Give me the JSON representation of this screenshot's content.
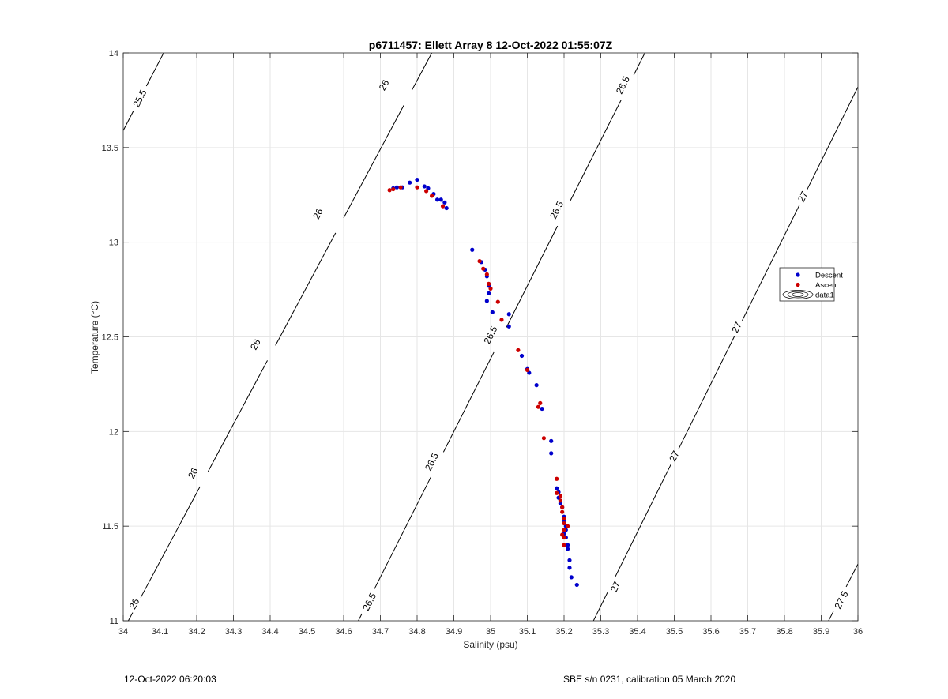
{
  "chart_data": {
    "type": "scatter",
    "title": "p6711457: Ellett Array 8 12-Oct-2022 01:55:07Z",
    "xlabel": "Salinity (psu)",
    "ylabel": "Temperature (°C)",
    "xlim": [
      34,
      36
    ],
    "ylim": [
      11,
      14
    ],
    "xticks": [
      "34",
      "34.1",
      "34.2",
      "34.3",
      "34.4",
      "34.5",
      "34.6",
      "34.7",
      "34.8",
      "34.9",
      "35",
      "35.1",
      "35.2",
      "35.3",
      "35.4",
      "35.5",
      "35.6",
      "35.7",
      "35.8",
      "35.9",
      "36"
    ],
    "yticks": [
      "11",
      "11.5",
      "12",
      "12.5",
      "13",
      "13.5",
      "14"
    ],
    "grid": true,
    "legend_position": "right",
    "series": [
      {
        "name": "Descent",
        "color": "#0000cc",
        "marker": "dot",
        "points": [
          [
            34.735,
            13.285
          ],
          [
            34.745,
            13.29
          ],
          [
            34.76,
            13.29
          ],
          [
            34.78,
            13.315
          ],
          [
            34.8,
            13.33
          ],
          [
            34.82,
            13.295
          ],
          [
            34.83,
            13.285
          ],
          [
            34.845,
            13.255
          ],
          [
            34.855,
            13.225
          ],
          [
            34.865,
            13.225
          ],
          [
            34.875,
            13.21
          ],
          [
            34.88,
            13.18
          ],
          [
            34.95,
            12.96
          ],
          [
            34.975,
            12.895
          ],
          [
            34.985,
            12.855
          ],
          [
            34.99,
            12.82
          ],
          [
            34.995,
            12.77
          ],
          [
            34.995,
            12.73
          ],
          [
            34.99,
            12.69
          ],
          [
            35.005,
            12.63
          ],
          [
            35.05,
            12.62
          ],
          [
            35.05,
            12.555
          ],
          [
            35.085,
            12.4
          ],
          [
            35.1,
            12.33
          ],
          [
            35.105,
            12.31
          ],
          [
            35.125,
            12.245
          ],
          [
            35.14,
            12.12
          ],
          [
            35.165,
            11.95
          ],
          [
            35.165,
            11.885
          ],
          [
            35.18,
            11.7
          ],
          [
            35.185,
            11.68
          ],
          [
            35.185,
            11.65
          ],
          [
            35.19,
            11.62
          ],
          [
            35.195,
            11.6
          ],
          [
            35.2,
            11.55
          ],
          [
            35.2,
            11.53
          ],
          [
            35.205,
            11.5
          ],
          [
            35.205,
            11.48
          ],
          [
            35.2,
            11.46
          ],
          [
            35.205,
            11.44
          ],
          [
            35.21,
            11.4
          ],
          [
            35.21,
            11.38
          ],
          [
            35.215,
            11.32
          ],
          [
            35.215,
            11.28
          ],
          [
            35.22,
            11.23
          ],
          [
            35.235,
            11.19
          ]
        ]
      },
      {
        "name": "Ascent",
        "color": "#cc0000",
        "marker": "dot",
        "points": [
          [
            34.725,
            13.275
          ],
          [
            34.735,
            13.28
          ],
          [
            34.755,
            13.29
          ],
          [
            34.8,
            13.29
          ],
          [
            34.825,
            13.27
          ],
          [
            34.84,
            13.245
          ],
          [
            34.87,
            13.19
          ],
          [
            34.97,
            12.9
          ],
          [
            34.98,
            12.86
          ],
          [
            34.99,
            12.83
          ],
          [
            34.995,
            12.78
          ],
          [
            35.0,
            12.755
          ],
          [
            35.02,
            12.685
          ],
          [
            35.03,
            12.59
          ],
          [
            35.075,
            12.43
          ],
          [
            35.1,
            12.325
          ],
          [
            35.13,
            12.13
          ],
          [
            35.135,
            12.15
          ],
          [
            35.145,
            11.965
          ],
          [
            35.18,
            11.75
          ],
          [
            35.18,
            11.675
          ],
          [
            35.19,
            11.66
          ],
          [
            35.19,
            11.635
          ],
          [
            35.195,
            11.6
          ],
          [
            35.195,
            11.575
          ],
          [
            35.2,
            11.54
          ],
          [
            35.2,
            11.515
          ],
          [
            35.2,
            11.48
          ],
          [
            35.195,
            11.455
          ],
          [
            35.21,
            11.5
          ],
          [
            35.2,
            11.44
          ],
          [
            35.2,
            11.4
          ]
        ]
      }
    ],
    "legend": [
      "Descent",
      "Ascent",
      "data1"
    ],
    "contours": [
      {
        "level": 25.5,
        "label": "25.5",
        "line": [
          [
            34,
            13.59
          ],
          [
            34.11,
            14
          ]
        ],
        "labels_at": [
          [
            34.045,
            13.76
          ]
        ]
      },
      {
        "level": 26,
        "label": "26",
        "line": [
          [
            34.0,
            10.95
          ],
          [
            34.84,
            14
          ]
        ],
        "labels_at": [
          [
            34.03,
            11.09
          ],
          [
            34.19,
            11.78
          ],
          [
            34.36,
            12.46
          ],
          [
            34.53,
            13.15
          ],
          [
            34.71,
            13.83
          ]
        ]
      },
      {
        "level": 26.5,
        "label": "26.5",
        "line": [
          [
            34.64,
            11
          ],
          [
            35.42,
            14
          ]
        ],
        "labels_at": [
          [
            34.67,
            11.1
          ],
          [
            34.84,
            11.84
          ],
          [
            35.0,
            12.51
          ],
          [
            35.18,
            13.17
          ],
          [
            35.36,
            13.83
          ]
        ]
      },
      {
        "level": 27,
        "label": "27",
        "line": [
          [
            35.28,
            11
          ],
          [
            36,
            13.82
          ]
        ],
        "labels_at": [
          [
            35.34,
            11.18
          ],
          [
            35.5,
            11.87
          ],
          [
            35.67,
            12.55
          ],
          [
            35.85,
            13.24
          ]
        ]
      },
      {
        "level": 27.5,
        "label": "27.5",
        "line": [
          [
            35.92,
            11
          ],
          [
            36,
            11.3
          ]
        ],
        "labels_at": [
          [
            35.955,
            11.11
          ]
        ]
      }
    ]
  },
  "footer": {
    "timestamp": "12-Oct-2022 06:20:03",
    "instrument": "SBE s/n 0231, calibration 05 March 2020"
  }
}
